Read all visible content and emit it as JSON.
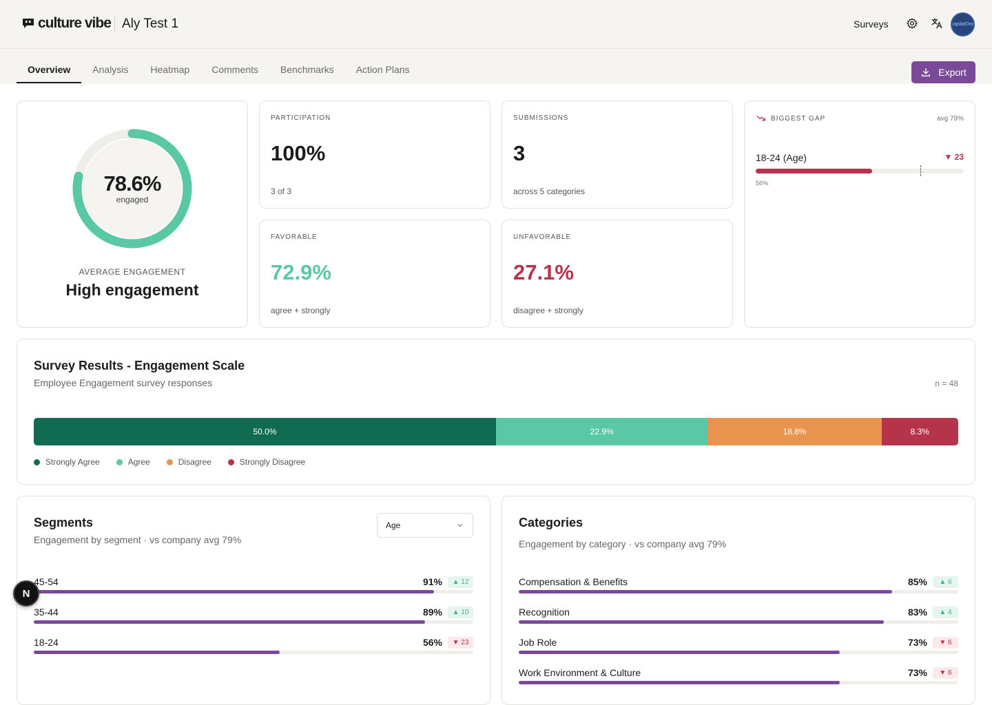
{
  "header": {
    "logo_text": "culture vibe",
    "project_title": "Aly Test 1",
    "surveys_label": "Surveys",
    "avatar_text": "capitalOne"
  },
  "tabs": [
    {
      "label": "Overview",
      "active": true
    },
    {
      "label": "Analysis"
    },
    {
      "label": "Heatmap"
    },
    {
      "label": "Comments"
    },
    {
      "label": "Benchmarks"
    },
    {
      "label": "Action Plans"
    }
  ],
  "export_label": "Export",
  "engagement": {
    "value": "78.6%",
    "progress": 0.786,
    "sub": "engaged",
    "label": "AVERAGE ENGAGEMENT",
    "level": "High engagement",
    "color": "#5ac8a4"
  },
  "kpis": {
    "participation": {
      "label": "PARTICIPATION",
      "value": "100%",
      "note": "3 of 3"
    },
    "submissions": {
      "label": "SUBMISSIONS",
      "value": "3",
      "note": "across 5 categories"
    },
    "favorable": {
      "label": "FAVORABLE",
      "value": "72.9%",
      "note": "agree + strongly",
      "color": "#5ac8a4"
    },
    "unfavorable": {
      "label": "UNFAVORABLE",
      "value": "27.1%",
      "note": "disagree + strongly",
      "color": "#b5344a"
    }
  },
  "biggest_gap": {
    "label": "BIGGEST GAP",
    "avg": "avg 79%",
    "avg_value": 79,
    "segment": "18-24 (Age)",
    "delta": "▼ 23",
    "value": 56,
    "value_label": "56%"
  },
  "survey_results": {
    "title": "Survey Results - Engagement Scale",
    "subtitle": "Employee Engagement survey responses",
    "n": "n = 48",
    "segments": [
      {
        "name": "Strongly Agree",
        "value": 50.0,
        "label": "50.0%",
        "color": "#116b52"
      },
      {
        "name": "Agree",
        "value": 22.9,
        "label": "22.9%",
        "color": "#5ac8a4"
      },
      {
        "name": "Disagree",
        "value": 18.8,
        "label": "18.8%",
        "color": "#e8944f"
      },
      {
        "name": "Strongly Disagree",
        "value": 8.3,
        "label": "8.3%",
        "color": "#b5344a"
      }
    ]
  },
  "segments": {
    "title": "Segments",
    "subtitle": "Engagement by segment · vs company avg 79%",
    "select_value": "Age",
    "rows": [
      {
        "label": "45-54",
        "value": 91,
        "value_label": "91%",
        "delta": "▲ 12",
        "dir": "up"
      },
      {
        "label": "35-44",
        "value": 89,
        "value_label": "89%",
        "delta": "▲ 10",
        "dir": "up"
      },
      {
        "label": "18-24",
        "value": 56,
        "value_label": "56%",
        "delta": "▼ 23",
        "dir": "down"
      }
    ]
  },
  "categories": {
    "title": "Categories",
    "subtitle": "Engagement by category · vs company avg 79%",
    "rows": [
      {
        "label": "Compensation & Benefits",
        "value": 85,
        "value_label": "85%",
        "delta": "▲ 6",
        "dir": "up"
      },
      {
        "label": "Recognition",
        "value": 83,
        "value_label": "83%",
        "delta": "▲ 4",
        "dir": "up"
      },
      {
        "label": "Job Role",
        "value": 73,
        "value_label": "73%",
        "delta": "▼ 6",
        "dir": "down"
      },
      {
        "label": "Work Environment & Culture",
        "value": 73,
        "value_label": "73%",
        "delta": "▼ 6",
        "dir": "down"
      }
    ]
  },
  "dev_badge": "N"
}
